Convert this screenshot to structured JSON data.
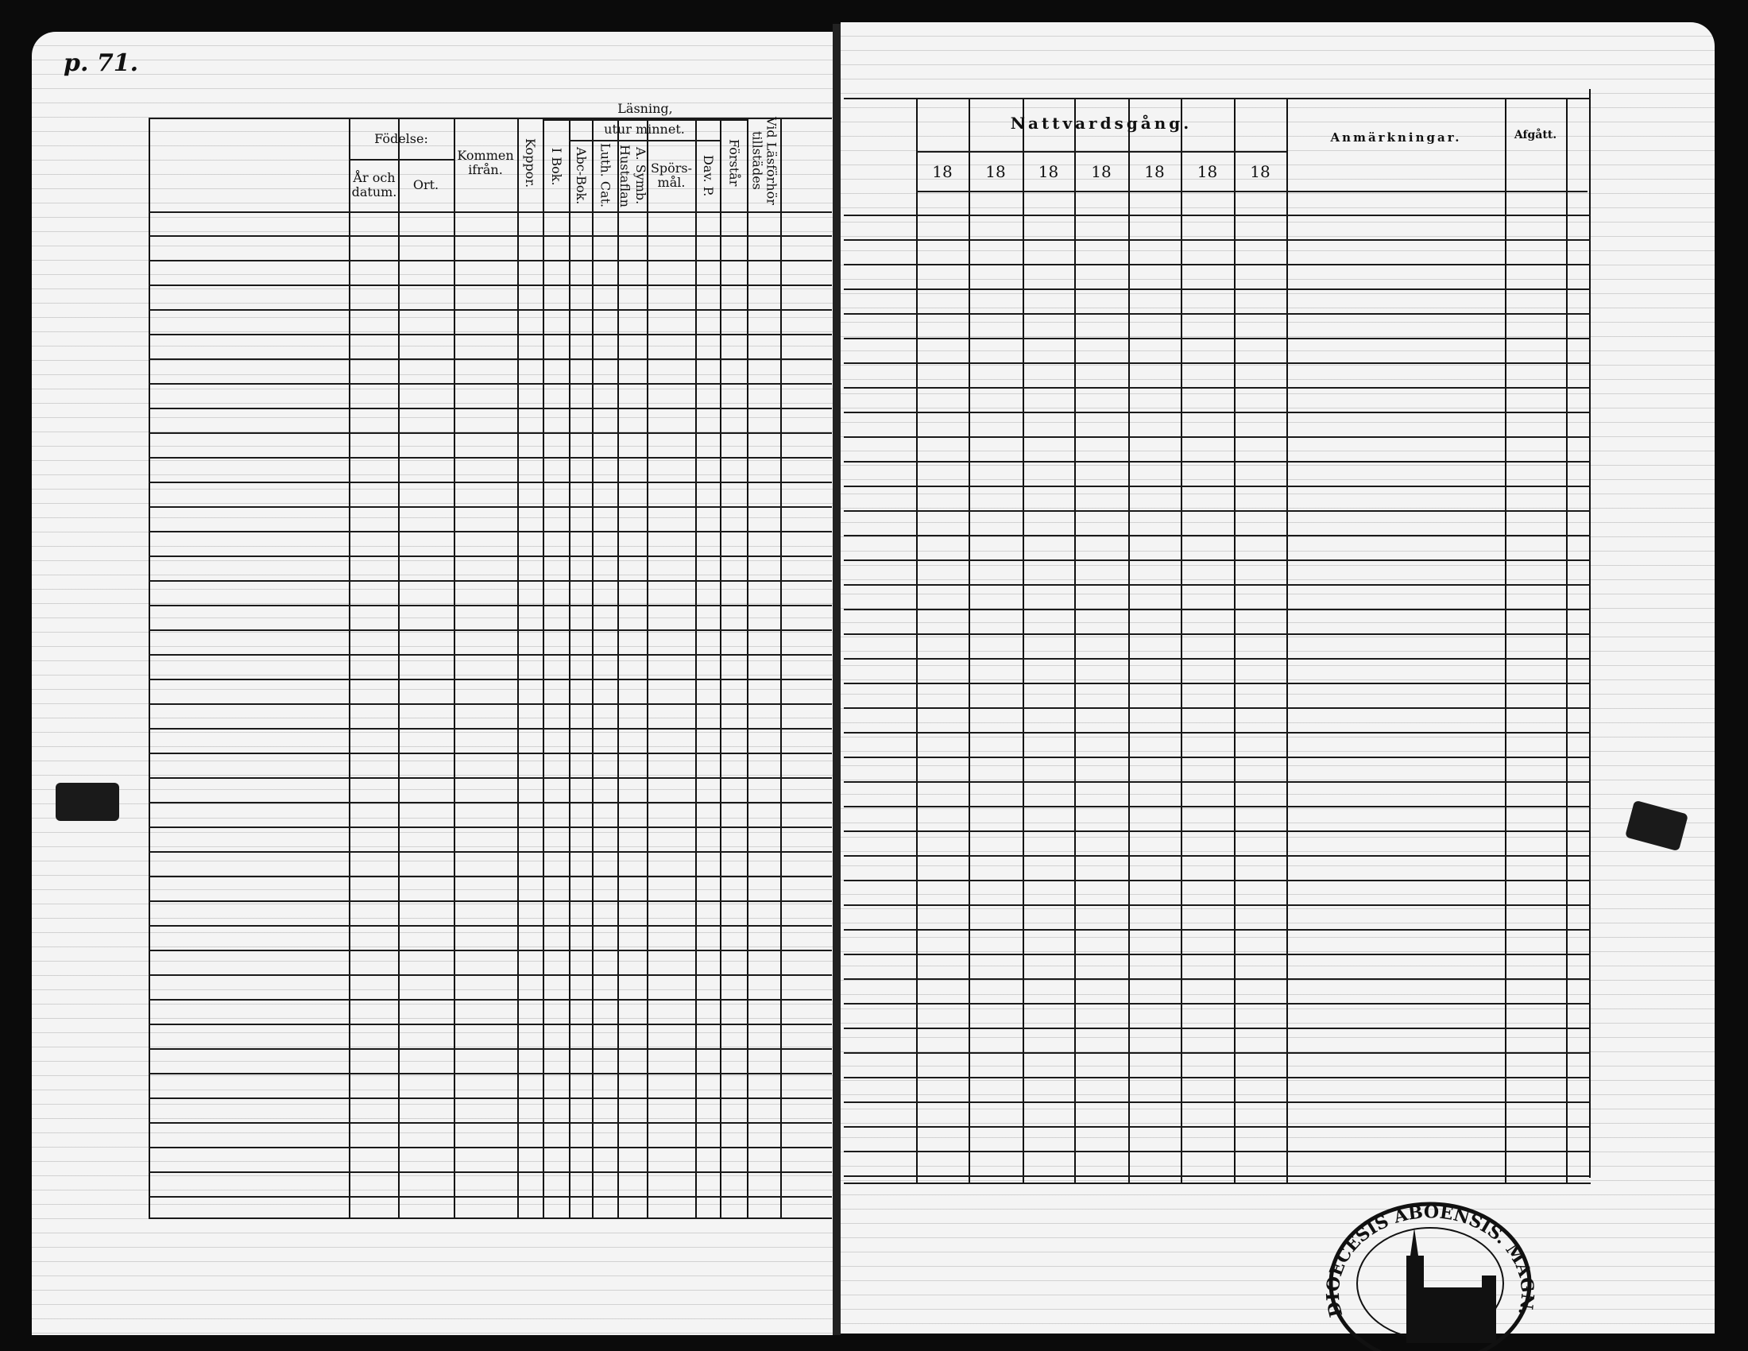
{
  "page_number": "p. 71.",
  "left": {
    "headers": {
      "fodelse": "Födelse:",
      "ar_och_datum": "År och datum.",
      "ort": "Ort.",
      "kommen_ifran": "Kommen ifrån.",
      "koppor": "Koppor.",
      "lasning": "Läsning,",
      "utur_minnet": "utur minnet.",
      "i_bok": "I Bok.",
      "abc_bok": "Abc-Bok.",
      "luth_cat": "Luth. Cat.",
      "hustaflan": "Hustaflan",
      "a_symb": "A. Symb.",
      "sporsmal": "Spörs-mål.",
      "dav_p": "Dav. P.",
      "forstar": "Förstår",
      "vid_lasforhor": "Vid Läsförhör tillstädes"
    }
  },
  "right": {
    "headers": {
      "nattvardsgang": "Nattvardsgång.",
      "years": [
        "18",
        "18",
        "18",
        "18",
        "18",
        "18",
        "18"
      ],
      "anmarkningar": "Anmärkningar.",
      "afgatt": "Afgått."
    }
  },
  "stamp": {
    "text": "DIOECESIS ABOENSIS. MAGN. FINL."
  }
}
